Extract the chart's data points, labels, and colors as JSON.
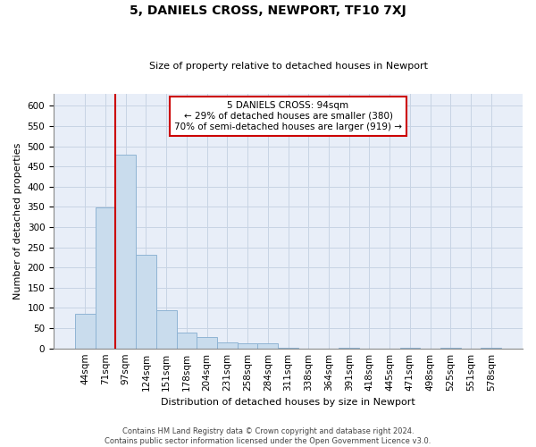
{
  "title": "5, DANIELS CROSS, NEWPORT, TF10 7XJ",
  "subtitle": "Size of property relative to detached houses in Newport",
  "xlabel": "Distribution of detached houses by size in Newport",
  "ylabel": "Number of detached properties",
  "property_label": "5 DANIELS CROSS: 94sqm",
  "annotation_line1": "← 29% of detached houses are smaller (380)",
  "annotation_line2": "70% of semi-detached houses are larger (919) →",
  "bar_color": "#c9dced",
  "bar_edge_color": "#8fb4d4",
  "vline_color": "#cc0000",
  "annotation_box_color": "#cc0000",
  "grid_color": "#c8d4e4",
  "background_color": "#e8eef8",
  "categories": [
    "44sqm",
    "71sqm",
    "97sqm",
    "124sqm",
    "151sqm",
    "178sqm",
    "204sqm",
    "231sqm",
    "258sqm",
    "284sqm",
    "311sqm",
    "338sqm",
    "364sqm",
    "391sqm",
    "418sqm",
    "445sqm",
    "471sqm",
    "498sqm",
    "525sqm",
    "551sqm",
    "578sqm"
  ],
  "values": [
    85,
    348,
    480,
    232,
    95,
    40,
    28,
    14,
    13,
    13,
    2,
    0,
    0,
    1,
    0,
    0,
    1,
    0,
    2,
    0,
    1
  ],
  "ylim": [
    0,
    630
  ],
  "yticks": [
    0,
    50,
    100,
    150,
    200,
    250,
    300,
    350,
    400,
    450,
    500,
    550,
    600
  ],
  "footer1": "Contains HM Land Registry data © Crown copyright and database right 2024.",
  "footer2": "Contains public sector information licensed under the Open Government Licence v3.0.",
  "vline_x_index": 1.5,
  "title_fontsize": 10,
  "subtitle_fontsize": 8,
  "ylabel_fontsize": 8,
  "xlabel_fontsize": 8,
  "tick_fontsize": 7.5,
  "footer_fontsize": 6
}
